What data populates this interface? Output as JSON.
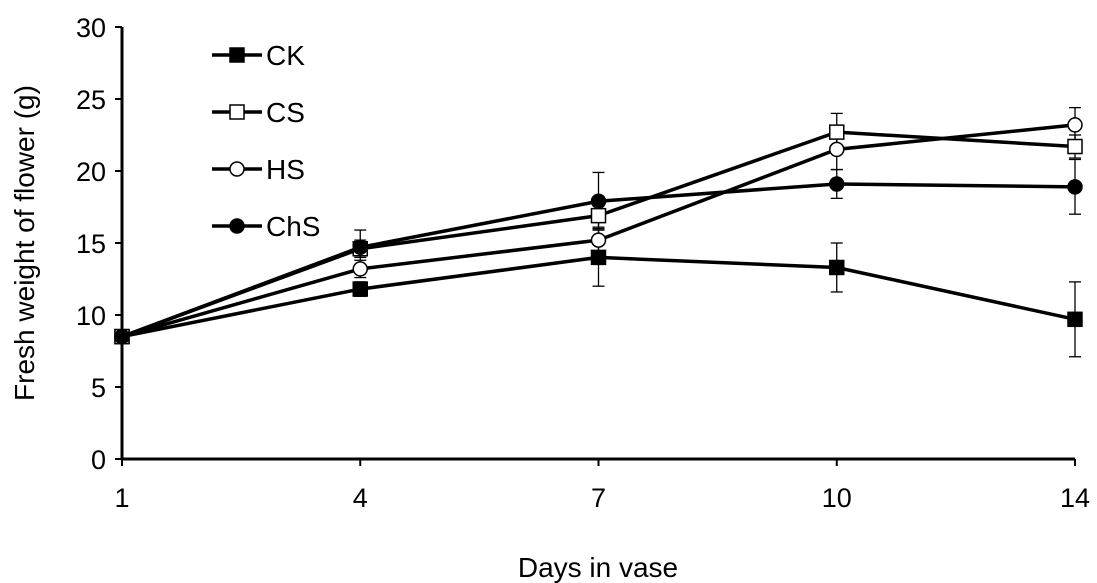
{
  "chart_data": {
    "type": "line",
    "xlabel": "Days in vase",
    "ylabel": "Fresh weight of flower (g)",
    "categories": [
      "1",
      "4",
      "7",
      "10",
      "14"
    ],
    "ylim": [
      0,
      30
    ],
    "yticks": [
      "0",
      "5",
      "10",
      "15",
      "20",
      "25",
      "30"
    ],
    "grid": false,
    "legend_position": "top-left",
    "series": [
      {
        "name": "CK",
        "marker": "filled-square",
        "values": [
          8.5,
          11.8,
          14.0,
          13.3,
          9.7
        ],
        "errors": [
          0.2,
          0.5,
          2.0,
          1.7,
          2.6
        ]
      },
      {
        "name": "CS",
        "marker": "open-square",
        "values": [
          8.5,
          14.6,
          16.9,
          22.7,
          21.7
        ],
        "errors": [
          0.2,
          0.6,
          1.0,
          1.3,
          0.8
        ]
      },
      {
        "name": "HS",
        "marker": "open-circle",
        "values": [
          8.5,
          13.2,
          15.2,
          21.5,
          23.2
        ],
        "errors": [
          0.2,
          0.6,
          0.9,
          1.4,
          1.2
        ]
      },
      {
        "name": "ChS",
        "marker": "filled-circle",
        "values": [
          8.5,
          14.7,
          17.9,
          19.1,
          18.9
        ],
        "errors": [
          0.2,
          1.2,
          2.0,
          1.0,
          1.9
        ]
      }
    ]
  }
}
